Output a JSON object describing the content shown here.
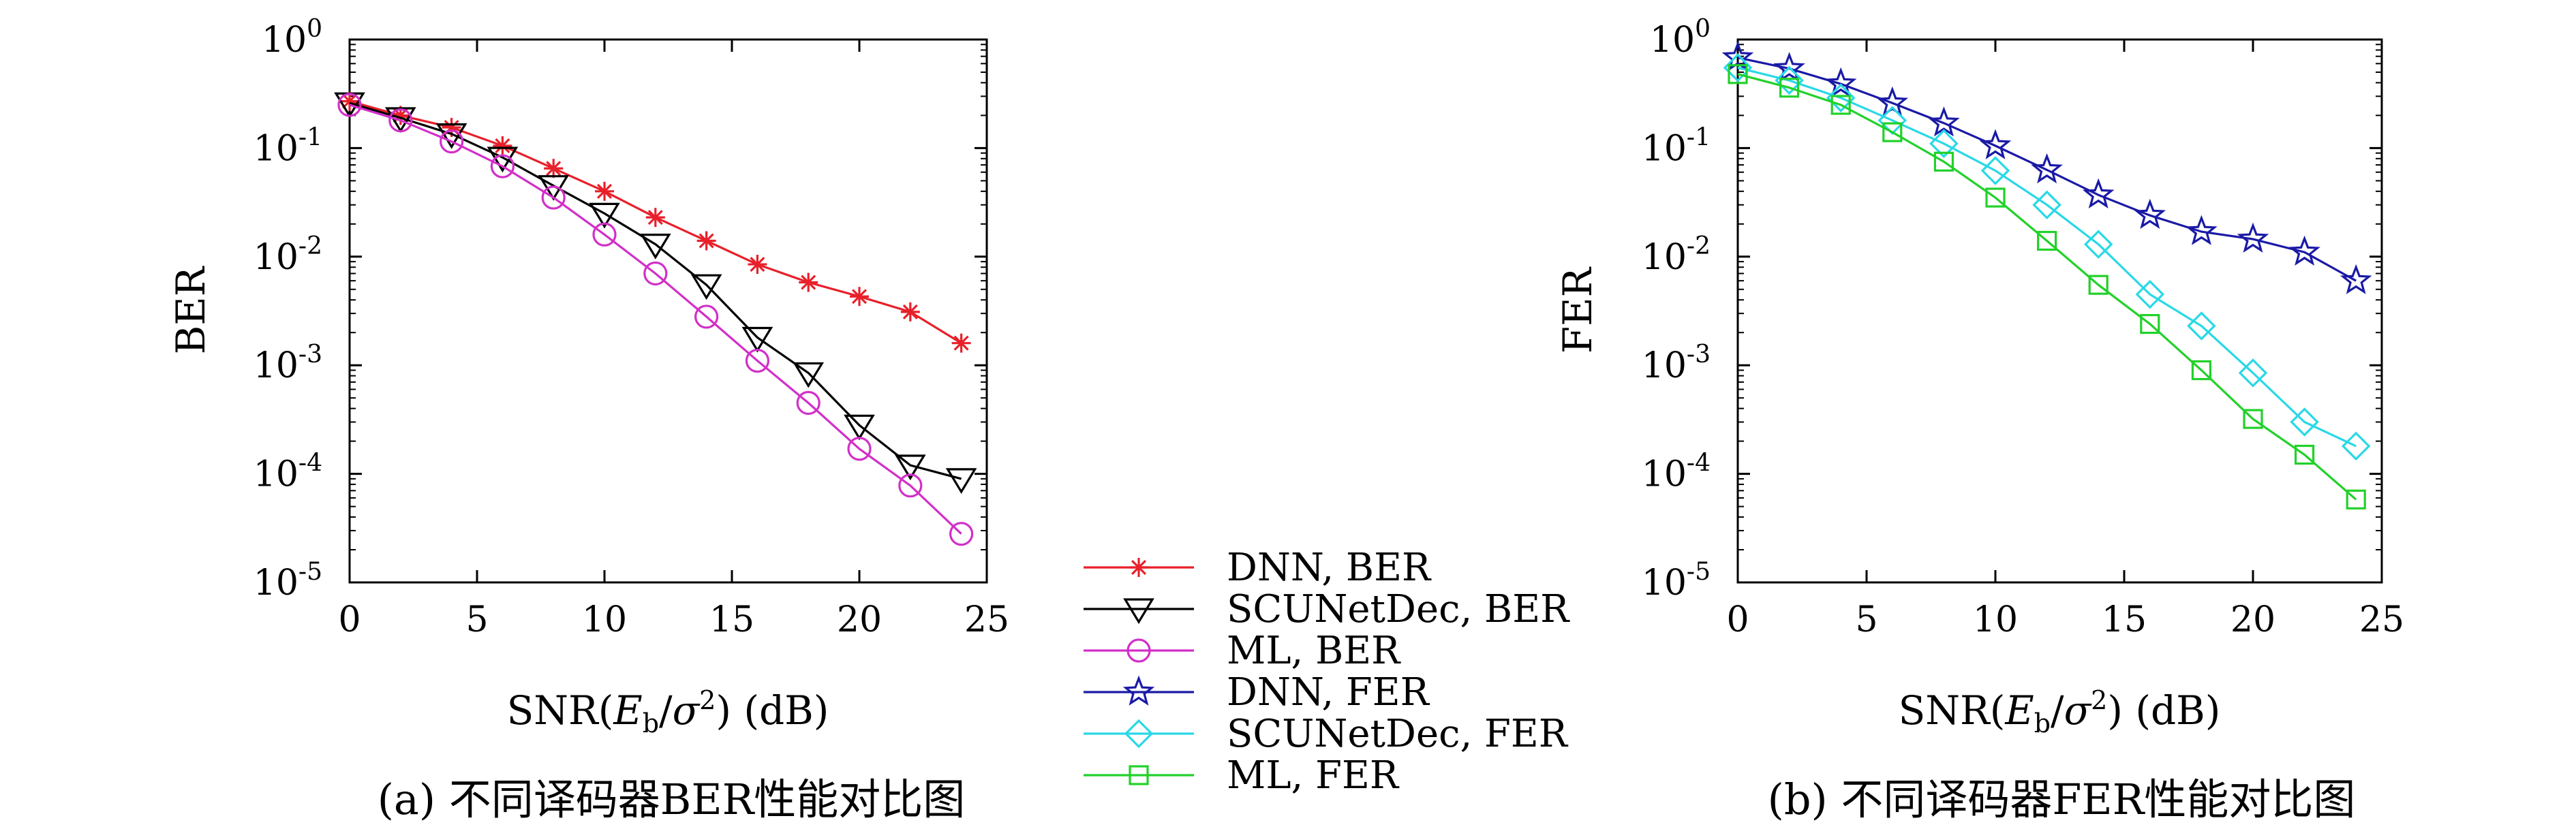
{
  "figure": {
    "caption_a": "(a) 不同译码器BER性能对比图",
    "caption_b": "(b) 不同译码器FER性能对比图"
  },
  "legend": {
    "items": [
      {
        "label": "DNN, BER",
        "color": "#e8202a",
        "marker": "asterisk"
      },
      {
        "label": "SCUNetDec, BER",
        "color": "#000000",
        "marker": "triangle-down"
      },
      {
        "label": "ML, BER",
        "color": "#d22fc8",
        "marker": "circle"
      },
      {
        "label": "DNN, FER",
        "color": "#1a1aa6",
        "marker": "star"
      },
      {
        "label": "SCUNetDec, FER",
        "color": "#29d8e6",
        "marker": "diamond"
      },
      {
        "label": "ML, FER",
        "color": "#22d12a",
        "marker": "square"
      }
    ]
  },
  "chart_data": [
    {
      "type": "line",
      "ylabel": "BER",
      "xlabel_parts": {
        "prefix": "SNR(",
        "E": "E",
        "sub": "b",
        "slash": "/",
        "sigma": "σ",
        "sup": "2",
        "suffix": ") (dB)"
      },
      "xlim": [
        0,
        25
      ],
      "ylim": [
        1e-05,
        1
      ],
      "yscale": "log",
      "xticks": [
        0,
        5,
        10,
        15,
        20,
        25
      ],
      "ytick_labels": [
        {
          "base": "10",
          "exp": "0"
        },
        {
          "base": "10",
          "exp": "-1"
        },
        {
          "base": "10",
          "exp": "-2"
        },
        {
          "base": "10",
          "exp": "-3"
        },
        {
          "base": "10",
          "exp": "-4"
        },
        {
          "base": "10",
          "exp": "-5"
        }
      ],
      "x": [
        0,
        2,
        4,
        6,
        8,
        10,
        12,
        14,
        16,
        18,
        20,
        22,
        24
      ],
      "series": [
        {
          "name": "DNN, BER",
          "values": [
            0.27,
            0.2,
            0.155,
            0.105,
            0.065,
            0.04,
            0.023,
            0.014,
            0.0085,
            0.0058,
            0.0043,
            0.0031,
            0.0016
          ]
        },
        {
          "name": "SCUNetDec, BER",
          "values": [
            0.26,
            0.19,
            0.135,
            0.082,
            0.045,
            0.025,
            0.013,
            0.0055,
            0.0018,
            0.00085,
            0.00028,
            0.00012,
            9e-05
          ]
        },
        {
          "name": "ML, BER",
          "values": [
            0.25,
            0.18,
            0.115,
            0.068,
            0.035,
            0.016,
            0.007,
            0.0028,
            0.0011,
            0.00045,
            0.00017,
            7.8e-05,
            2.8e-05
          ]
        }
      ]
    },
    {
      "type": "line",
      "ylabel": "FER",
      "xlabel_parts": {
        "prefix": "SNR(",
        "E": "E",
        "sub": "b",
        "slash": "/",
        "sigma": "σ",
        "sup": "2",
        "suffix": ") (dB)"
      },
      "xlim": [
        0,
        25
      ],
      "ylim": [
        1e-05,
        1
      ],
      "yscale": "log",
      "xticks": [
        0,
        5,
        10,
        15,
        20,
        25
      ],
      "ytick_labels": [
        {
          "base": "10",
          "exp": "0"
        },
        {
          "base": "10",
          "exp": "-1"
        },
        {
          "base": "10",
          "exp": "-2"
        },
        {
          "base": "10",
          "exp": "-3"
        },
        {
          "base": "10",
          "exp": "-4"
        },
        {
          "base": "10",
          "exp": "-5"
        }
      ],
      "x": [
        0,
        2,
        4,
        6,
        8,
        10,
        12,
        14,
        16,
        18,
        20,
        22,
        24
      ],
      "series": [
        {
          "name": "DNN, FER",
          "values": [
            0.68,
            0.54,
            0.39,
            0.26,
            0.17,
            0.105,
            0.063,
            0.037,
            0.024,
            0.017,
            0.0145,
            0.011,
            0.006
          ]
        },
        {
          "name": "SCUNetDec, FER",
          "values": [
            0.55,
            0.42,
            0.29,
            0.18,
            0.11,
            0.062,
            0.03,
            0.013,
            0.0045,
            0.0023,
            0.00085,
            0.0003,
            0.00018
          ]
        },
        {
          "name": "ML, FER",
          "values": [
            0.48,
            0.36,
            0.25,
            0.14,
            0.075,
            0.035,
            0.014,
            0.0055,
            0.0024,
            0.0009,
            0.00032,
            0.00015,
            5.8e-05
          ]
        }
      ]
    }
  ]
}
